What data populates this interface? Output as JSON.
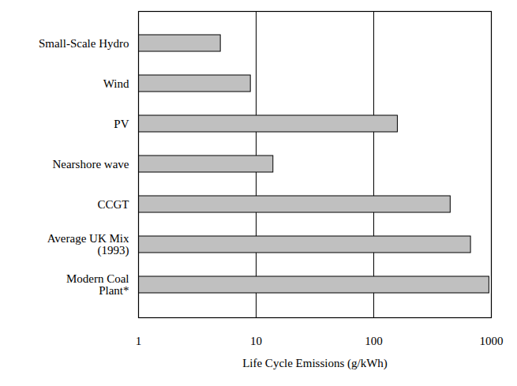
{
  "chart_data": {
    "type": "bar",
    "orientation": "horizontal",
    "log": "x",
    "grid": true,
    "xlabel": "Life Cycle Emissions (g/kWh)",
    "categories": [
      "Small-Scale Hydro",
      "Wind",
      "PV",
      "Nearshore wave",
      "CCGT",
      "Average UK Mix\n(1993)",
      "Modern Coal\nPlant*"
    ],
    "values": [
      5,
      9,
      160,
      14,
      450,
      670,
      960
    ],
    "color": "#c0c0c0",
    "xlim": [
      1,
      1000
    ],
    "xticks": [
      1,
      10,
      100,
      1000
    ]
  }
}
